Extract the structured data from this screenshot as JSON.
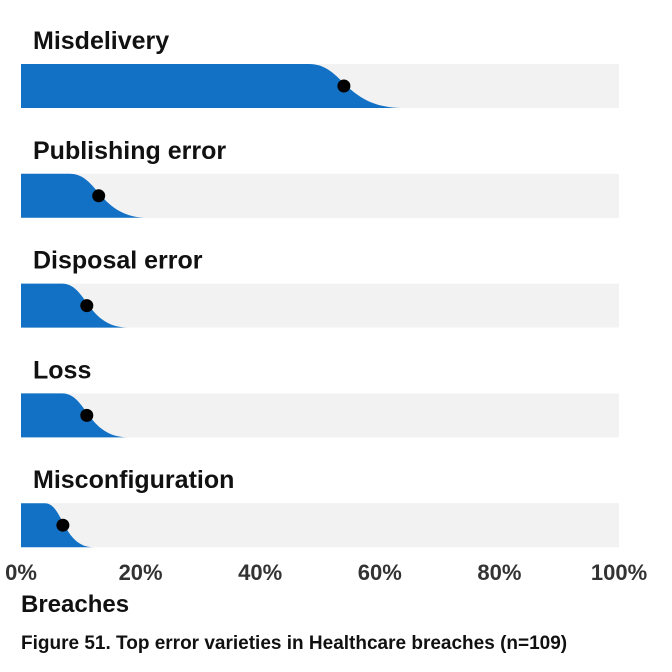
{
  "chart_data": {
    "type": "slab-dot",
    "series": [
      {
        "category": "Misdelivery",
        "value": 54
      },
      {
        "category": "Publishing error",
        "value": 13
      },
      {
        "category": "Disposal error",
        "value": 11
      },
      {
        "category": "Loss",
        "value": 11
      },
      {
        "category": "Misconfiguration",
        "value": 7
      }
    ],
    "categories": [
      "Misdelivery",
      "Publishing error",
      "Disposal error",
      "Loss",
      "Misconfiguration"
    ],
    "values": [
      54,
      13,
      11,
      11,
      7
    ],
    "xlim": [
      0,
      100
    ],
    "x_ticks": [
      "0%",
      "20%",
      "40%",
      "60%",
      "80%",
      "100%"
    ],
    "xlabel": "Breaches",
    "caption": "Figure 51. Top error varieties in Healthcare breaches (n=109)",
    "grid": false,
    "legend": "none"
  },
  "colors": {
    "fill": "#1271c4",
    "track": "#f2f2f2",
    "dot": "#000000",
    "text": "#111111",
    "tick_text": "#333333"
  }
}
